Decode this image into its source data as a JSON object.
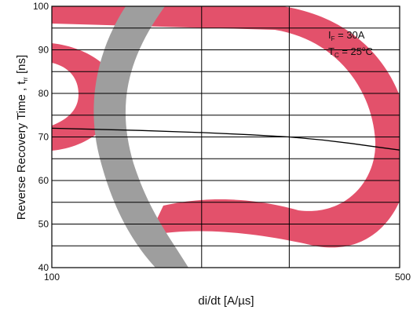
{
  "chart_data": {
    "type": "line",
    "xlabel": "di/dt [A/µs]",
    "ylabel": "Reverse Recovery Time , t",
    "ylabel_sub": "rr",
    "ylabel_unit": " [ns]",
    "x_scale": "log",
    "xlim": [
      100,
      500
    ],
    "ylim": [
      40,
      100
    ],
    "x_tick_labels": [
      "100",
      "500"
    ],
    "y_ticks": [
      40,
      50,
      60,
      70,
      80,
      90,
      100
    ],
    "x_gridlines": [
      200,
      300
    ],
    "y_gridlines": [
      45,
      50,
      55,
      60,
      65,
      70,
      75,
      80,
      85,
      90,
      95
    ],
    "grid": true,
    "annotations": [
      {
        "main": "I",
        "sub": "F",
        "rest": " = 30A"
      },
      {
        "main": "T",
        "sub": "C",
        "rest": " = 25",
        "sup": "o",
        "tail": "C"
      }
    ],
    "series": [
      {
        "x": [
          100,
          150,
          200,
          250,
          300,
          350,
          400,
          450,
          500
        ],
        "y": [
          72.0,
          71.5,
          71.0,
          70.5,
          70.0,
          69.3,
          68.5,
          67.7,
          67.0
        ]
      }
    ],
    "colors": {
      "line": "#000000",
      "grid": "#000000",
      "watermark_red": "#e3516b",
      "watermark_gray": "#9e9e9e"
    }
  }
}
